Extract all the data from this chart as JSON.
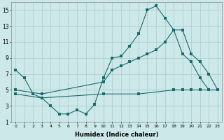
{
  "line1_x": [
    0,
    1,
    2,
    3,
    4,
    5,
    6,
    7,
    8,
    9,
    10,
    11,
    12,
    13,
    14,
    15,
    16,
    17,
    18,
    19,
    20,
    21,
    22,
    23
  ],
  "line1_y": [
    7.5,
    6.5,
    4.5,
    4.0,
    3.0,
    2.0,
    2.0,
    2.5,
    2.0,
    3.2,
    6.5,
    9.0,
    9.2,
    10.5,
    12.0,
    15.0,
    15.5,
    14.0,
    12.5,
    9.5,
    8.5,
    6.5,
    5.0,
    5.0
  ],
  "line2_x": [
    0,
    3,
    10,
    11,
    12,
    13,
    14,
    15,
    16,
    17,
    18,
    19,
    20,
    21,
    22,
    23
  ],
  "line2_y": [
    5.0,
    4.5,
    6.0,
    7.5,
    8.0,
    8.5,
    9.0,
    9.5,
    10.0,
    11.0,
    12.5,
    12.5,
    9.5,
    8.5,
    7.0,
    5.0
  ],
  "line3_x": [
    0,
    3,
    10,
    14,
    18,
    19,
    20,
    21,
    22,
    23
  ],
  "line3_y": [
    4.5,
    4.0,
    4.5,
    4.5,
    5.0,
    5.0,
    5.0,
    5.0,
    5.0,
    5.0
  ],
  "color": "#1a6b6b",
  "bg_color": "#cce8e8",
  "grid_color": "#aacaca",
  "xlabel": "Humidex (Indice chaleur)",
  "xlim": [
    -0.5,
    23.5
  ],
  "ylim": [
    1,
    16
  ],
  "yticks": [
    1,
    3,
    5,
    7,
    9,
    11,
    13,
    15
  ],
  "xticks": [
    0,
    1,
    2,
    3,
    4,
    5,
    6,
    7,
    8,
    9,
    10,
    11,
    12,
    13,
    14,
    15,
    16,
    17,
    18,
    19,
    20,
    21,
    22,
    23
  ]
}
